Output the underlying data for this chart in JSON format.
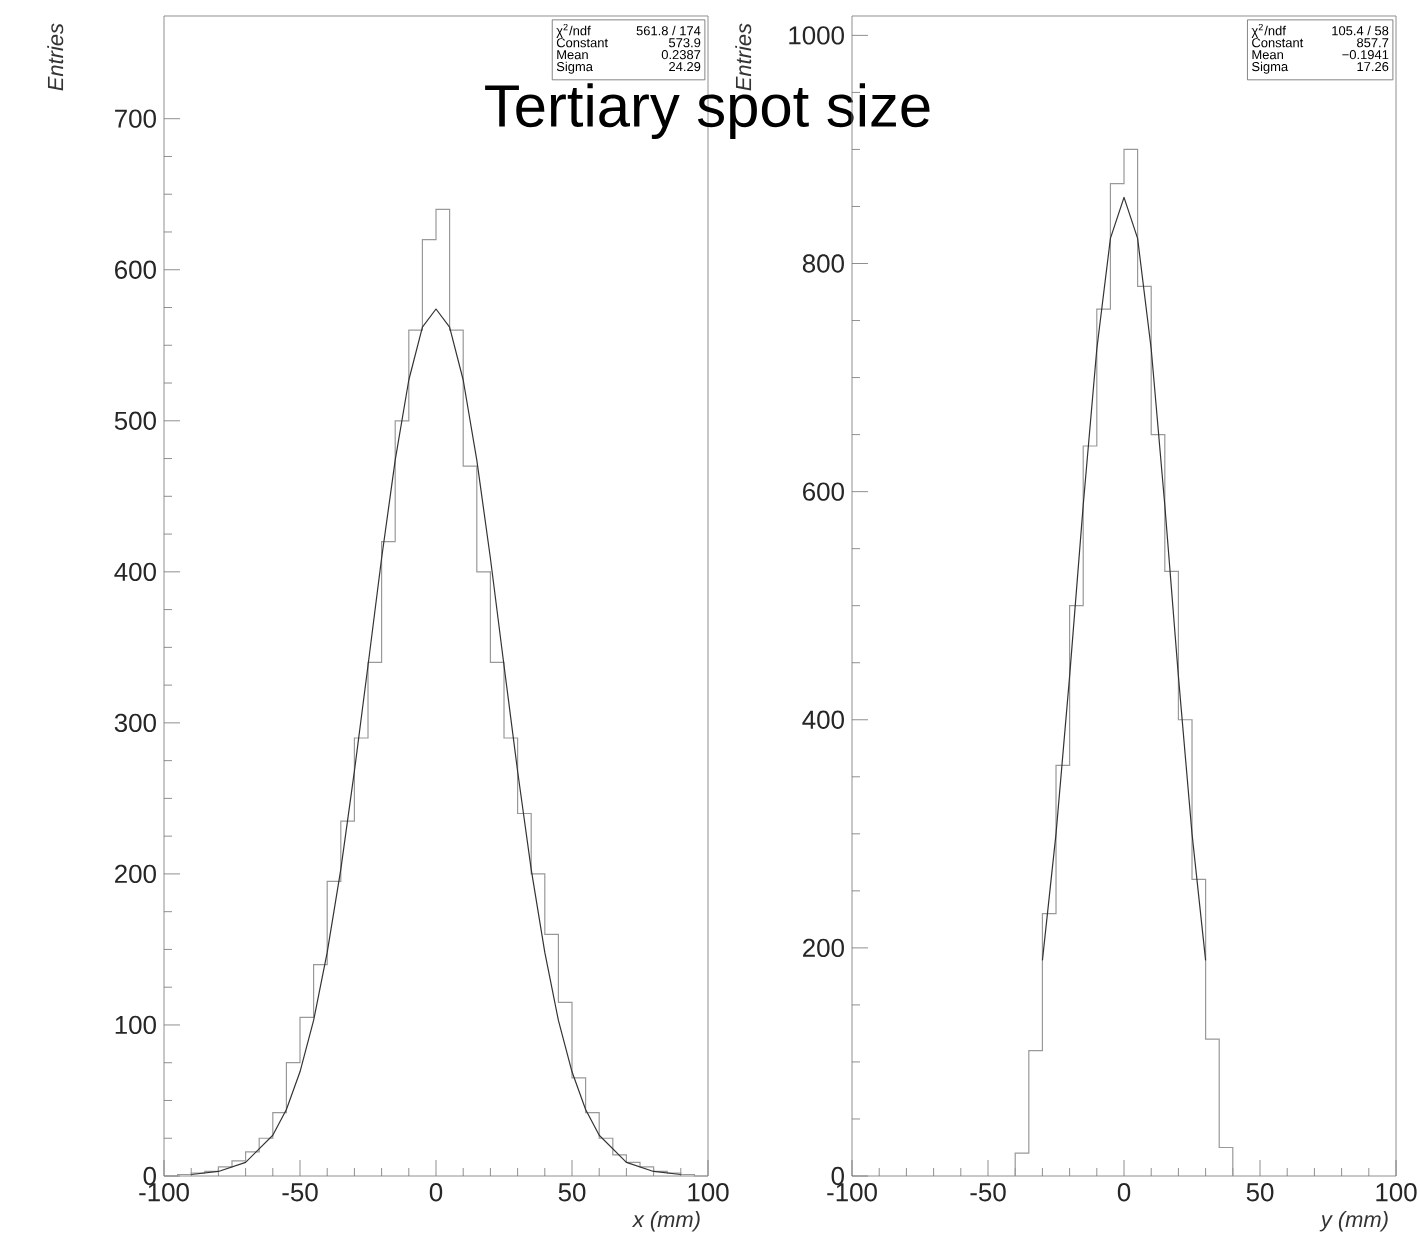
{
  "chart_data": [
    {
      "type": "histogram",
      "title": "Tertiary spot size",
      "xlabel": "x (mm)",
      "ylabel": "Entries",
      "color": "#999999",
      "bins": [
        -100,
        -95,
        -90,
        -85,
        -80,
        -75,
        -70,
        -65,
        -60,
        -55,
        -50,
        -45,
        -40,
        -35,
        -30,
        -25,
        -20,
        -15,
        -10,
        -5,
        0,
        5,
        10,
        15,
        20,
        25,
        30,
        35,
        40,
        45,
        50,
        55,
        60,
        65,
        70,
        75,
        80,
        85,
        90,
        95,
        100
      ],
      "values": [
        0,
        1,
        2,
        3,
        6,
        10,
        16,
        25,
        42,
        75,
        105,
        140,
        195,
        235,
        290,
        340,
        420,
        500,
        560,
        620,
        640,
        560,
        470,
        400,
        340,
        290,
        240,
        200,
        160,
        115,
        65,
        42,
        25,
        14,
        9,
        6,
        3,
        2,
        1,
        0
      ],
      "series": [
        {
          "type": "line",
          "color": "#333333",
          "x": [
            -90,
            -80,
            -70,
            -60,
            -55,
            -50,
            -45,
            -40,
            -35,
            -30,
            -25,
            -20,
            -15,
            -10,
            -5,
            0,
            5,
            10,
            15,
            20,
            25,
            30,
            35,
            40,
            45,
            50,
            55,
            60,
            70,
            80,
            90
          ],
          "values": [
            1,
            3,
            9,
            27,
            44,
            69,
            103,
            148,
            203,
            268,
            338,
            409,
            474,
            527,
            562,
            574,
            562,
            527,
            474,
            409,
            338,
            268,
            203,
            148,
            103,
            69,
            44,
            27,
            9,
            3,
            1
          ]
        }
      ],
      "xlim": [
        -100,
        100
      ],
      "ylim": [
        0,
        768
      ],
      "xticks": [
        -100,
        -50,
        0,
        50,
        100
      ],
      "yticks": [
        0,
        100,
        200,
        300,
        400,
        500,
        600,
        700
      ],
      "annotations": [
        "χ$^{2}$/ndf",
        "561.8  /  174",
        "Constant",
        "573.9",
        "Mean",
        "0.2387",
        "Sigma",
        "24.29"
      ]
    },
    {
      "type": "histogram",
      "xlabel": "y (mm)",
      "ylabel": "Entries",
      "color": "#999999",
      "bins": [
        -40,
        -35,
        -30,
        -25,
        -20,
        -15,
        -10,
        -5,
        0,
        5,
        10,
        15,
        20,
        25,
        30,
        35,
        40
      ],
      "values": [
        20,
        110,
        230,
        360,
        500,
        640,
        760,
        870,
        900,
        780,
        650,
        530,
        400,
        260,
        120,
        25
      ],
      "series": [
        {
          "type": "line",
          "color": "#333333",
          "x": [
            -30,
            -25,
            -20,
            -15,
            -10,
            -5,
            0,
            5,
            10,
            15,
            20,
            25,
            30
          ],
          "values": [
            189,
            300,
            438,
            588,
            725,
            822,
            858,
            822,
            725,
            588,
            438,
            300,
            189
          ]
        }
      ],
      "xlim": [
        -100,
        100
      ],
      "ylim": [
        0,
        1017
      ],
      "xticks": [
        -100,
        -50,
        0,
        50,
        100
      ],
      "yticks": [
        0,
        200,
        400,
        600,
        800,
        1000
      ],
      "annotations": [
        "χ$^{2}$/ndf",
        "105.4  /  58",
        "Constant",
        "857.7",
        "Mean",
        "−0.1941",
        "Sigma",
        "17.26"
      ]
    }
  ]
}
